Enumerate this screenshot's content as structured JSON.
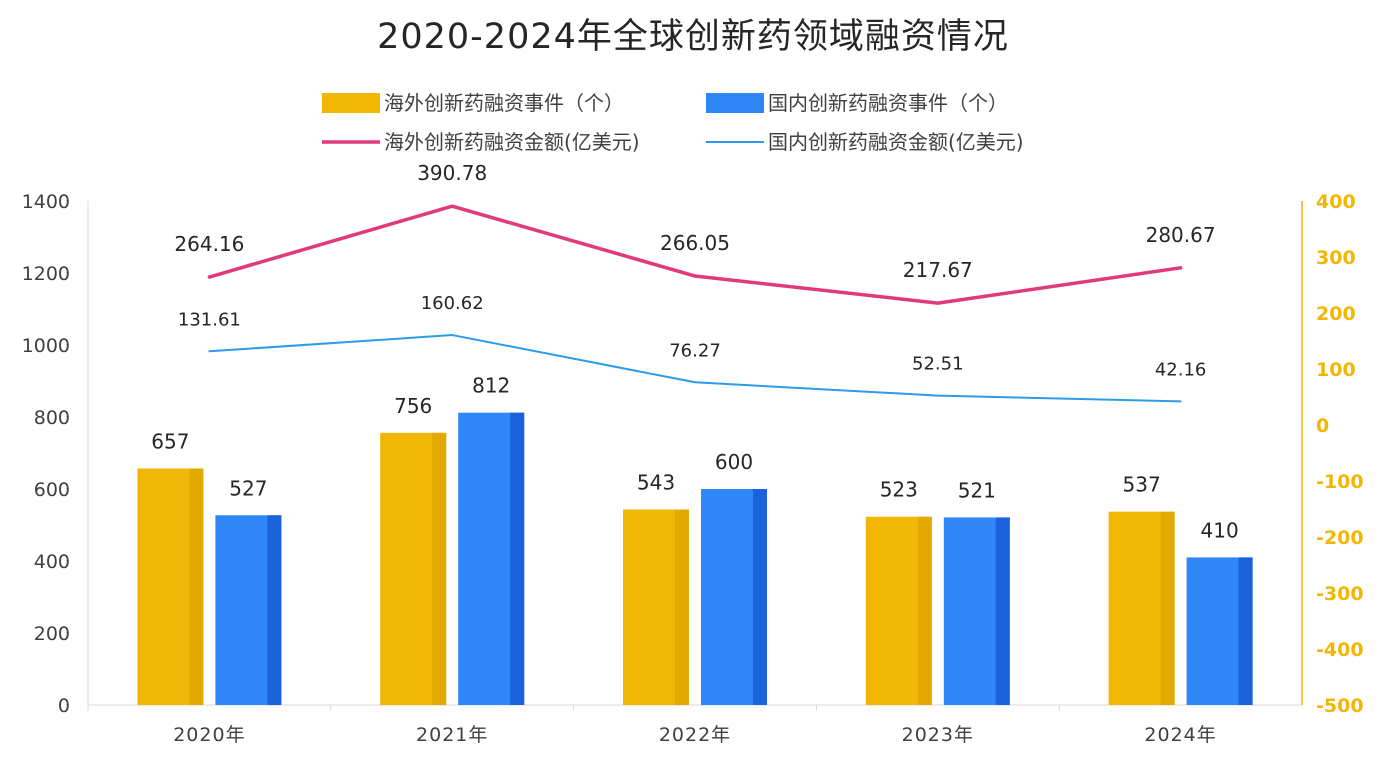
{
  "chart_data": {
    "type": "bar",
    "title": "2020-2024年全球创新药领域融资情况",
    "categories": [
      "2020年",
      "2021年",
      "2022年",
      "2023年",
      "2024年"
    ],
    "left_axis": {
      "ylim": [
        0,
        1400
      ],
      "ticks": [
        "0",
        "200",
        "400",
        "600",
        "800",
        "1000",
        "1200",
        "1400"
      ]
    },
    "right_axis": {
      "ylim": [
        -500,
        400
      ],
      "ticks": [
        "-500",
        "-400",
        "-300",
        "-200",
        "-100",
        "0",
        "100",
        "200",
        "300",
        "400"
      ]
    },
    "series": [
      {
        "name": "海外创新药融资事件（个）",
        "type": "bar",
        "axis": "left",
        "color": "#f2b705",
        "values": [
          657,
          756,
          543,
          523,
          537
        ],
        "labels": [
          "657",
          "756",
          "543",
          "523",
          "537"
        ]
      },
      {
        "name": "国内创新药融资事件（个）",
        "type": "bar",
        "axis": "left",
        "color": "#2f86f6",
        "values": [
          527,
          812,
          600,
          521,
          410
        ],
        "labels": [
          "527",
          "812",
          "600",
          "521",
          "410"
        ]
      },
      {
        "name": "海外创新药融资金额(亿美元)",
        "type": "line",
        "axis": "right",
        "color": "#e03a7a",
        "values": [
          264.16,
          390.78,
          266.05,
          217.67,
          280.67
        ],
        "labels": [
          "264.16",
          "390.78",
          "266.05",
          "217.67",
          "280.67"
        ]
      },
      {
        "name": "国内创新药融资金额(亿美元)",
        "type": "line",
        "axis": "right",
        "color": "#2d9be8",
        "values": [
          131.61,
          160.62,
          76.27,
          52.51,
          42.16
        ],
        "labels": [
          "131.61",
          "160.62",
          "76.27",
          "52.51",
          "42.16"
        ]
      }
    ],
    "legend_position": "top",
    "grid": false
  }
}
